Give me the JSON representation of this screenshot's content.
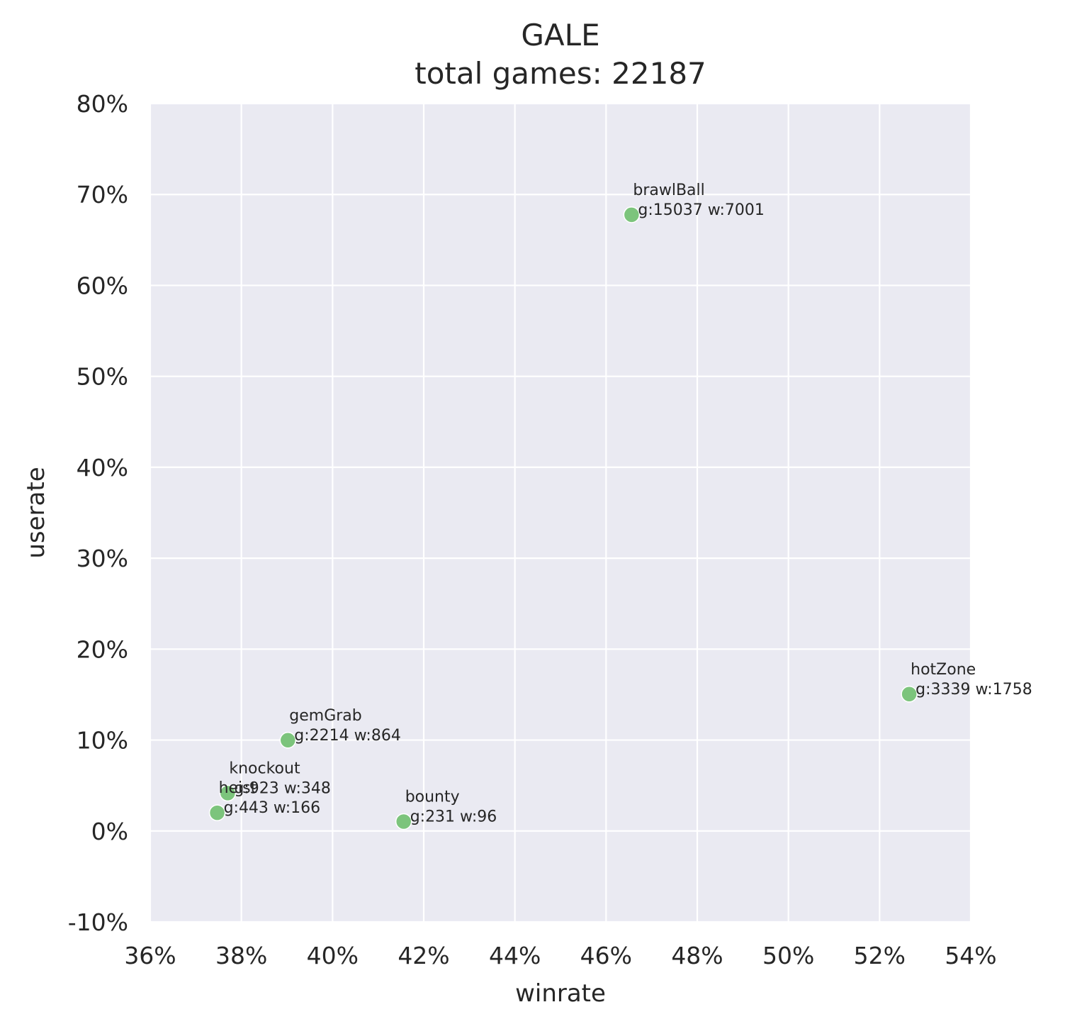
{
  "chart_data": {
    "type": "scatter",
    "title": "GALE",
    "subtitle": "total games: 22187",
    "xlabel": "winrate",
    "ylabel": "userate",
    "xlim": [
      0.36,
      0.54
    ],
    "ylim": [
      -0.1,
      0.8
    ],
    "x_ticks": [
      0.36,
      0.38,
      0.4,
      0.42,
      0.44,
      0.46,
      0.48,
      0.5,
      0.52,
      0.54
    ],
    "x_tick_labels": [
      "36%",
      "38%",
      "40%",
      "42%",
      "44%",
      "46%",
      "48%",
      "50%",
      "52%",
      "54%"
    ],
    "y_ticks": [
      -0.1,
      0.0,
      0.1,
      0.2,
      0.3,
      0.4,
      0.5,
      0.6,
      0.7,
      0.8
    ],
    "y_tick_labels": [
      "-10%",
      "0%",
      "10%",
      "20%",
      "30%",
      "40%",
      "50%",
      "60%",
      "70%",
      "80%"
    ],
    "grid": true,
    "background_color": "#eaeaf2",
    "point_color": "#7cc47c",
    "points": [
      {
        "name": "brawlBall",
        "info": "g:15037 w:7001",
        "x": 0.4656,
        "y": 0.6777
      },
      {
        "name": "hotZone",
        "info": "g:3339 w:1758",
        "x": 0.5265,
        "y": 0.1505
      },
      {
        "name": "gemGrab",
        "info": "g:2214 w:864",
        "x": 0.3902,
        "y": 0.0998
      },
      {
        "name": "knockout",
        "info": "g:923 w:348",
        "x": 0.377,
        "y": 0.0416
      },
      {
        "name": "heist",
        "info": "g:443 w:166",
        "x": 0.3747,
        "y": 0.02
      },
      {
        "name": "bounty",
        "info": "g:231 w:96",
        "x": 0.4156,
        "y": 0.0104
      }
    ]
  }
}
